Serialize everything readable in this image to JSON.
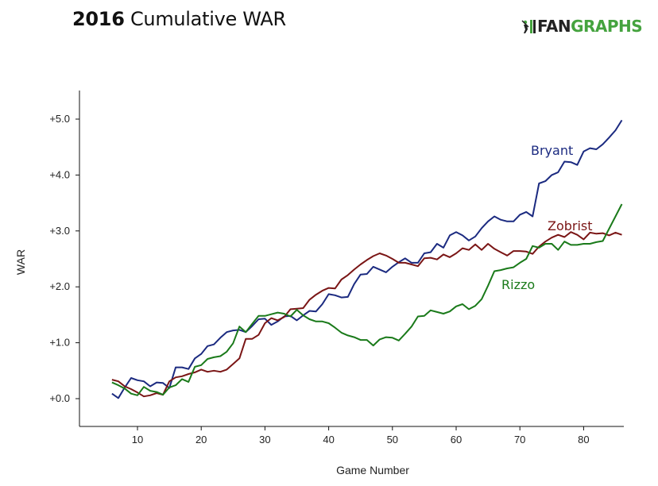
{
  "header": {
    "title_year": "2016",
    "title_rest": "Cumulative WAR",
    "logo_fan": "FAN",
    "logo_graphs": "GRAPHS"
  },
  "chart_data": {
    "type": "line",
    "xlabel": "Game Number",
    "ylabel": "WAR",
    "xlim": [
      1,
      86
    ],
    "ylim": [
      -0.5,
      5.55
    ],
    "x_ticks": [
      10,
      20,
      30,
      40,
      50,
      60,
      70,
      80
    ],
    "y_ticks": [
      0,
      1,
      2,
      3,
      4,
      5
    ],
    "y_tick_labels": [
      "+0.0",
      "+1.0",
      "+2.0",
      "+3.0",
      "+4.0",
      "+5.0"
    ],
    "grid": false,
    "series": [
      {
        "name": "Bryant",
        "color": "#1b2a80",
        "x": [
          6,
          7,
          8,
          9,
          10,
          11,
          12,
          13,
          14,
          15,
          16,
          17,
          18,
          19,
          20,
          21,
          22,
          23,
          24,
          25,
          26,
          27,
          28,
          29,
          30,
          31,
          32,
          33,
          34,
          35,
          36,
          37,
          38,
          39,
          40,
          41,
          42,
          43,
          44,
          45,
          46,
          47,
          48,
          49,
          50,
          51,
          52,
          53,
          54,
          55,
          56,
          57,
          58,
          59,
          60,
          61,
          62,
          63,
          64,
          65,
          66,
          67,
          68,
          69,
          70,
          71,
          72,
          73,
          74,
          75,
          76,
          77,
          78,
          79,
          80,
          81,
          82,
          83,
          84,
          85,
          86
        ],
        "y": [
          0.09,
          0.01,
          0.2,
          0.37,
          0.33,
          0.31,
          0.22,
          0.29,
          0.28,
          0.19,
          0.56,
          0.56,
          0.53,
          0.72,
          0.8,
          0.94,
          0.97,
          1.09,
          1.19,
          1.22,
          1.23,
          1.19,
          1.3,
          1.42,
          1.43,
          1.32,
          1.38,
          1.47,
          1.48,
          1.4,
          1.49,
          1.57,
          1.56,
          1.69,
          1.87,
          1.85,
          1.81,
          1.82,
          2.05,
          2.22,
          2.23,
          2.36,
          2.31,
          2.26,
          2.36,
          2.44,
          2.51,
          2.43,
          2.43,
          2.6,
          2.62,
          2.77,
          2.7,
          2.92,
          2.98,
          2.92,
          2.83,
          2.9,
          3.05,
          3.17,
          3.26,
          3.2,
          3.17,
          3.17,
          3.29,
          3.34,
          3.26,
          3.85,
          3.89,
          4.0,
          4.05,
          4.24,
          4.23,
          4.18,
          4.42,
          4.48,
          4.46,
          4.55,
          4.67,
          4.8,
          4.98
        ]
      },
      {
        "name": "Zobrist",
        "color": "#7a1515",
        "x": [
          6,
          7,
          8,
          9,
          10,
          11,
          12,
          13,
          14,
          15,
          16,
          17,
          18,
          19,
          20,
          21,
          22,
          23,
          24,
          25,
          26,
          27,
          28,
          29,
          30,
          31,
          32,
          33,
          34,
          35,
          36,
          37,
          38,
          39,
          40,
          41,
          42,
          43,
          44,
          45,
          46,
          47,
          48,
          49,
          50,
          51,
          52,
          53,
          54,
          55,
          56,
          57,
          58,
          59,
          60,
          61,
          62,
          63,
          64,
          65,
          66,
          67,
          68,
          69,
          70,
          71,
          72,
          73,
          74,
          75,
          76,
          77,
          78,
          79,
          80,
          81,
          82,
          83,
          84,
          85,
          86
        ],
        "y": [
          0.34,
          0.31,
          0.22,
          0.17,
          0.11,
          0.04,
          0.06,
          0.1,
          0.07,
          0.31,
          0.38,
          0.4,
          0.44,
          0.47,
          0.52,
          0.48,
          0.5,
          0.48,
          0.52,
          0.62,
          0.72,
          1.07,
          1.07,
          1.14,
          1.35,
          1.44,
          1.4,
          1.46,
          1.6,
          1.61,
          1.62,
          1.77,
          1.86,
          1.93,
          1.98,
          1.97,
          2.13,
          2.21,
          2.31,
          2.4,
          2.48,
          2.55,
          2.6,
          2.56,
          2.5,
          2.43,
          2.43,
          2.4,
          2.37,
          2.51,
          2.52,
          2.49,
          2.58,
          2.53,
          2.6,
          2.69,
          2.66,
          2.76,
          2.66,
          2.77,
          2.68,
          2.62,
          2.56,
          2.64,
          2.64,
          2.63,
          2.59,
          2.72,
          2.81,
          2.88,
          2.93,
          2.89,
          2.98,
          2.93,
          2.85,
          2.97,
          2.95,
          2.96,
          2.92,
          2.97,
          2.93
        ]
      },
      {
        "name": "Rizzo",
        "color": "#1a7a1a",
        "x": [
          6,
          7,
          8,
          9,
          10,
          11,
          12,
          13,
          14,
          15,
          16,
          17,
          18,
          19,
          20,
          21,
          22,
          23,
          24,
          25,
          26,
          27,
          28,
          29,
          30,
          31,
          32,
          33,
          34,
          35,
          36,
          37,
          38,
          39,
          40,
          41,
          42,
          43,
          44,
          45,
          46,
          47,
          48,
          49,
          50,
          51,
          52,
          53,
          54,
          55,
          56,
          57,
          58,
          59,
          60,
          61,
          62,
          63,
          64,
          65,
          66,
          67,
          68,
          69,
          70,
          71,
          72,
          73,
          74,
          75,
          76,
          77,
          78,
          79,
          80,
          81,
          82,
          83,
          84,
          85,
          86
        ],
        "y": [
          0.29,
          0.24,
          0.18,
          0.09,
          0.06,
          0.21,
          0.14,
          0.12,
          0.07,
          0.2,
          0.24,
          0.35,
          0.3,
          0.57,
          0.6,
          0.71,
          0.74,
          0.76,
          0.84,
          0.99,
          1.29,
          1.19,
          1.34,
          1.48,
          1.48,
          1.51,
          1.54,
          1.52,
          1.47,
          1.59,
          1.49,
          1.42,
          1.38,
          1.38,
          1.35,
          1.27,
          1.18,
          1.13,
          1.1,
          1.05,
          1.05,
          0.95,
          1.06,
          1.1,
          1.09,
          1.04,
          1.16,
          1.29,
          1.47,
          1.48,
          1.58,
          1.55,
          1.52,
          1.56,
          1.65,
          1.69,
          1.6,
          1.66,
          1.78,
          2.02,
          2.28,
          2.3,
          2.33,
          2.35,
          2.43,
          2.5,
          2.73,
          2.7,
          2.77,
          2.77,
          2.66,
          2.81,
          2.75,
          2.75,
          2.77,
          2.77,
          2.8,
          2.82,
          3.04,
          3.26,
          3.48
        ]
      }
    ],
    "annotations": [
      {
        "text": "Bryant",
        "series": "Bryant"
      },
      {
        "text": "Zobrist",
        "series": "Zobrist"
      },
      {
        "text": "Rizzo",
        "series": "Rizzo"
      }
    ]
  }
}
